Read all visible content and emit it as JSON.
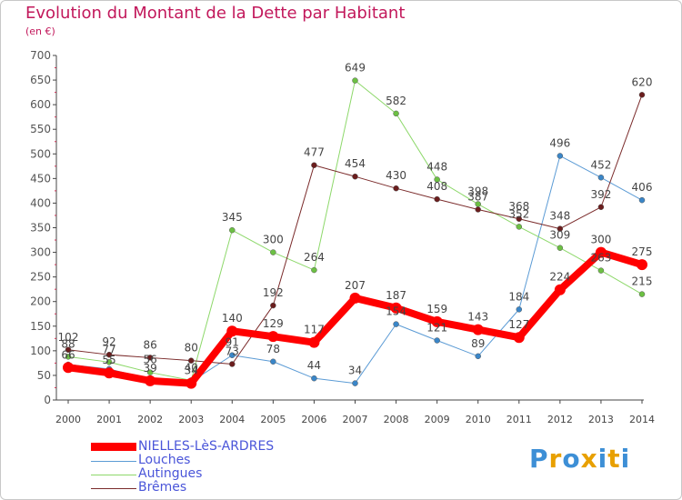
{
  "title": "Evolution du Montant de la Dette par Habitant",
  "subtitle": "(en €)",
  "logo": {
    "text": "Proxiti",
    "letter_colors": [
      "#3d8fd6",
      "#e8a000",
      "#3d8fd6",
      "#e8a000",
      "#3d8fd6",
      "#e8a000",
      "#3d8fd6"
    ]
  },
  "chart_data": {
    "type": "line",
    "x": [
      "2000",
      "2001",
      "2002",
      "2003",
      "2004",
      "2005",
      "2006",
      "2007",
      "2008",
      "2009",
      "2010",
      "2011",
      "2012",
      "2013",
      "2014"
    ],
    "ylim": [
      0,
      700
    ],
    "yticks": [
      0,
      50,
      100,
      150,
      200,
      250,
      300,
      350,
      400,
      450,
      500,
      550,
      600,
      650,
      700
    ],
    "grid": false,
    "legend_position": "bottom-left",
    "series": [
      {
        "name": "Louches",
        "color": "#5b9bd5",
        "marker": "#3a86c8",
        "values": [
          72,
          63,
          42,
          37,
          91,
          78,
          44,
          34,
          154,
          121,
          89,
          184,
          496,
          452,
          406
        ],
        "labels": [
          false,
          false,
          false,
          false,
          true,
          true,
          true,
          true,
          true,
          true,
          true,
          true,
          true,
          true,
          true
        ]
      },
      {
        "name": "Autingues",
        "color": "#8dd86a",
        "marker": "#6cc043",
        "values": [
          88,
          77,
          56,
          40,
          345,
          300,
          264,
          649,
          582,
          448,
          398,
          352,
          309,
          263,
          215
        ],
        "labels": [
          true,
          true,
          true,
          true,
          true,
          true,
          true,
          true,
          true,
          true,
          true,
          true,
          true,
          true,
          true
        ]
      },
      {
        "name": "Brêmes",
        "color": "#7a2a2a",
        "marker": "#6b1d1d",
        "values": [
          102,
          92,
          86,
          80,
          73,
          192,
          477,
          454,
          430,
          408,
          387,
          368,
          348,
          392,
          620
        ],
        "labels": [
          true,
          true,
          true,
          true,
          true,
          true,
          true,
          true,
          true,
          true,
          true,
          true,
          true,
          true,
          true
        ]
      },
      {
        "name": "NIELLES-LèS-ARDRES",
        "color": "#ff0000",
        "marker": "#ff0000",
        "thick": true,
        "values": [
          66,
          55,
          39,
          34,
          140,
          129,
          117,
          207,
          187,
          159,
          143,
          127,
          224,
          300,
          275
        ],
        "labels": [
          true,
          true,
          true,
          true,
          true,
          true,
          true,
          true,
          true,
          true,
          true,
          true,
          true,
          true,
          true
        ]
      }
    ]
  },
  "legend": [
    {
      "name": "NIELLES-LèS-ARDRES",
      "color": "#ff0000",
      "thick": true
    },
    {
      "name": "Louches",
      "color": "#5b9bd5",
      "thick": false
    },
    {
      "name": "Autingues",
      "color": "#8dd86a",
      "thick": false
    },
    {
      "name": "Brêmes",
      "color": "#7a2a2a",
      "thick": false
    }
  ]
}
